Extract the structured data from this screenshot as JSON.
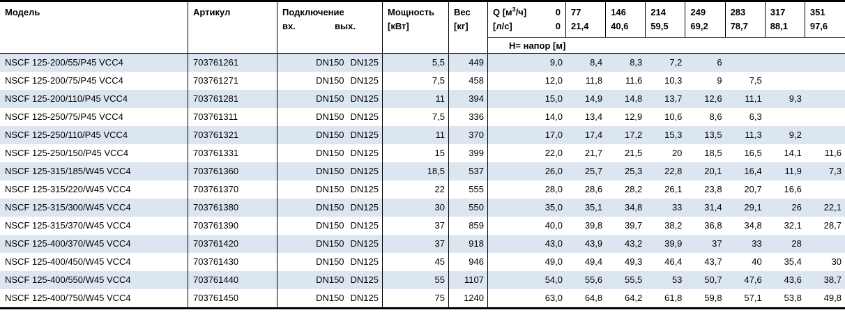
{
  "colors": {
    "row_alt": "#dce6f1",
    "border": "#000000",
    "text": "#000000",
    "background": "#ffffff"
  },
  "table": {
    "headers": {
      "model": "Модель",
      "article": "Артикул",
      "connection": "Подключение",
      "inlet": "вх.",
      "outlet": "вых.",
      "power_line1": "Мощность",
      "power_line2": "[кВт]",
      "weight_line1": "Вес",
      "weight_line2": "[кг]",
      "q_prefix": "Q [м",
      "q_sup": "3",
      "q_suffix": "/ч]",
      "q_zero": "0",
      "ls_label": "[л/с]",
      "ls_zero": "0",
      "q_values": [
        "77",
        "146",
        "214",
        "249",
        "283",
        "317",
        "351"
      ],
      "ls_values": [
        "21,4",
        "40,6",
        "59,5",
        "69,2",
        "78,7",
        "88,1",
        "97,6"
      ],
      "head_label": "Н= напор [м]"
    },
    "rows": [
      {
        "model": "NSCF 125-200/55/P45 VCC4",
        "article": "703761261",
        "inlet": "DN150",
        "outlet": "DN125",
        "power": "5,5",
        "weight": "449",
        "h": [
          "9,0",
          "8,4",
          "8,3",
          "7,2",
          "6",
          "",
          "",
          ""
        ]
      },
      {
        "model": "NSCF 125-200/75/P45 VCC4",
        "article": "703761271",
        "inlet": "DN150",
        "outlet": "DN125",
        "power": "7,5",
        "weight": "458",
        "h": [
          "12,0",
          "11,8",
          "11,6",
          "10,3",
          "9",
          "7,5",
          "",
          ""
        ]
      },
      {
        "model": "NSCF 125-200/110/P45 VCC4",
        "article": "703761281",
        "inlet": "DN150",
        "outlet": "DN125",
        "power": "11",
        "weight": "394",
        "h": [
          "15,0",
          "14,9",
          "14,8",
          "13,7",
          "12,6",
          "11,1",
          "9,3",
          ""
        ]
      },
      {
        "model": "NSCF 125-250/75/P45 VCC4",
        "article": "703761311",
        "inlet": "DN150",
        "outlet": "DN125",
        "power": "7,5",
        "weight": "336",
        "h": [
          "14,0",
          "13,4",
          "12,9",
          "10,6",
          "8,6",
          "6,3",
          "",
          ""
        ]
      },
      {
        "model": "NSCF 125-250/110/P45 VCC4",
        "article": "703761321",
        "inlet": "DN150",
        "outlet": "DN125",
        "power": "11",
        "weight": "370",
        "h": [
          "17,0",
          "17,4",
          "17,2",
          "15,3",
          "13,5",
          "11,3",
          "9,2",
          ""
        ]
      },
      {
        "model": "NSCF 125-250/150/P45 VCC4",
        "article": "703761331",
        "inlet": "DN150",
        "outlet": "DN125",
        "power": "15",
        "weight": "399",
        "h": [
          "22,0",
          "21,7",
          "21,5",
          "20",
          "18,5",
          "16,5",
          "14,1",
          "11,6"
        ]
      },
      {
        "model": "NSCF 125-315/185/W45 VCC4",
        "article": "703761360",
        "inlet": "DN150",
        "outlet": "DN125",
        "power": "18,5",
        "weight": "537",
        "h": [
          "26,0",
          "25,7",
          "25,3",
          "22,8",
          "20,1",
          "16,4",
          "11,9",
          "7,3"
        ]
      },
      {
        "model": "NSCF 125-315/220/W45 VCC4",
        "article": "703761370",
        "inlet": "DN150",
        "outlet": "DN125",
        "power": "22",
        "weight": "555",
        "h": [
          "28,0",
          "28,6",
          "28,2",
          "26,1",
          "23,8",
          "20,7",
          "16,6",
          ""
        ]
      },
      {
        "model": "NSCF 125-315/300/W45 VCC4",
        "article": "703761380",
        "inlet": "DN150",
        "outlet": "DN125",
        "power": "30",
        "weight": "550",
        "h": [
          "35,0",
          "35,1",
          "34,8",
          "33",
          "31,4",
          "29,1",
          "26",
          "22,1"
        ]
      },
      {
        "model": "NSCF 125-315/370/W45 VCC4",
        "article": "703761390",
        "inlet": "DN150",
        "outlet": "DN125",
        "power": "37",
        "weight": "859",
        "h": [
          "40,0",
          "39,8",
          "39,7",
          "38,2",
          "36,8",
          "34,8",
          "32,1",
          "28,7"
        ]
      },
      {
        "model": "NSCF 125-400/370/W45 VCC4",
        "article": "703761420",
        "inlet": "DN150",
        "outlet": "DN125",
        "power": "37",
        "weight": "918",
        "h": [
          "43,0",
          "43,9",
          "43,2",
          "39,9",
          "37",
          "33",
          "28",
          ""
        ]
      },
      {
        "model": "NSCF 125-400/450/W45 VCC4",
        "article": "703761430",
        "inlet": "DN150",
        "outlet": "DN125",
        "power": "45",
        "weight": "946",
        "h": [
          "49,0",
          "49,4",
          "49,3",
          "46,4",
          "43,7",
          "40",
          "35,4",
          "30"
        ]
      },
      {
        "model": "NSCF 125-400/550/W45 VCC4",
        "article": "703761440",
        "inlet": "DN150",
        "outlet": "DN125",
        "power": "55",
        "weight": "1107",
        "h": [
          "54,0",
          "55,6",
          "55,5",
          "53",
          "50,7",
          "47,6",
          "43,6",
          "38,7"
        ]
      },
      {
        "model": "NSCF 125-400/750/W45 VCC4",
        "article": "703761450",
        "inlet": "DN150",
        "outlet": "DN125",
        "power": "75",
        "weight": "1240",
        "h": [
          "63,0",
          "64,8",
          "64,2",
          "61,8",
          "59,8",
          "57,1",
          "53,8",
          "49,8"
        ]
      }
    ]
  }
}
